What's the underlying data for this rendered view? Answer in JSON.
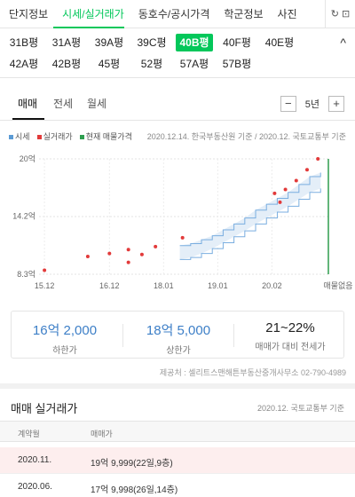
{
  "top_tabs": [
    "단지정보",
    "시세/실거래가",
    "동호수/공시가격",
    "학군정보",
    "사진"
  ],
  "top_icons": {
    "refresh": "refresh-icon",
    "refresh_text": "↻ ⊡"
  },
  "pyeong": {
    "row1": [
      "31B평",
      "31A평",
      "39A평",
      "39C평",
      "40B평",
      "40F평",
      "40E평"
    ],
    "row2": [
      "42A평",
      "42B평",
      "45평",
      "52평",
      "57A평",
      "57B평"
    ],
    "active": "40B평",
    "collapse_glyph": "^"
  },
  "trade_tabs": [
    "매매",
    "전세",
    "월세"
  ],
  "period": {
    "minus": "−",
    "value": "5년",
    "plus": "+"
  },
  "legend": [
    {
      "label": "시세",
      "color": "#5b9bd5"
    },
    {
      "label": "실거래가",
      "color": "#e23a3a"
    },
    {
      "label": "현재 매물가격",
      "color": "#2e9e4f"
    }
  ],
  "source_text": "2020.12.14. 한국부동산원 기준 / 2020.12. 국토교통부 기준",
  "chart_data": {
    "type": "line",
    "y_ticks": [
      "8.3억",
      "14.2억",
      "20억"
    ],
    "ylim": [
      8.3,
      20
    ],
    "x_ticks": [
      "15.12",
      "16.12",
      "18.01",
      "19.01",
      "20.02"
    ],
    "x_end_label": "매물없음",
    "trades": [
      {
        "t": 0.02,
        "v": 8.7
      },
      {
        "t": 0.18,
        "v": 10.1
      },
      {
        "t": 0.26,
        "v": 10.4
      },
      {
        "t": 0.33,
        "v": 9.5
      },
      {
        "t": 0.33,
        "v": 10.8
      },
      {
        "t": 0.38,
        "v": 10.3
      },
      {
        "t": 0.43,
        "v": 11.1
      },
      {
        "t": 0.53,
        "v": 12.0
      },
      {
        "t": 0.87,
        "v": 16.5
      },
      {
        "t": 0.89,
        "v": 15.6
      },
      {
        "t": 0.91,
        "v": 16.9
      },
      {
        "t": 0.95,
        "v": 17.8
      },
      {
        "t": 0.99,
        "v": 18.9
      },
      {
        "t": 1.03,
        "v": 20.0
      }
    ],
    "band_upper": [
      [
        0.52,
        11.2
      ],
      [
        0.56,
        11.4
      ],
      [
        0.6,
        11.8
      ],
      [
        0.64,
        12.2
      ],
      [
        0.68,
        12.8
      ],
      [
        0.72,
        13.4
      ],
      [
        0.76,
        14.0
      ],
      [
        0.8,
        14.8
      ],
      [
        0.84,
        15.4
      ],
      [
        0.88,
        16.0
      ],
      [
        0.92,
        16.6
      ],
      [
        0.96,
        17.4
      ],
      [
        1.0,
        18.2
      ],
      [
        1.04,
        18.6
      ]
    ],
    "band_lower": [
      [
        0.52,
        9.8
      ],
      [
        0.56,
        10.0
      ],
      [
        0.6,
        10.4
      ],
      [
        0.64,
        10.9
      ],
      [
        0.68,
        11.5
      ],
      [
        0.72,
        12.1
      ],
      [
        0.76,
        12.7
      ],
      [
        0.8,
        13.4
      ],
      [
        0.84,
        14.0
      ],
      [
        0.88,
        14.6
      ],
      [
        0.92,
        15.2
      ],
      [
        0.96,
        15.9
      ],
      [
        1.0,
        16.6
      ],
      [
        1.04,
        17.0
      ]
    ]
  },
  "summary": [
    {
      "value": "16억 2,000",
      "label": "하한가"
    },
    {
      "value": "18억 5,000",
      "label": "상한가"
    },
    {
      "value": "21~22%",
      "label": "매매가 대비 전세가"
    }
  ],
  "credit": "제공처 : 셀리트스맨해튼부동산중개사무소 02-790-4989",
  "section": {
    "title": "매매 실거래가",
    "source": "2020.12. 국토교통부 기준",
    "headers": [
      "계약월",
      "매매가"
    ],
    "rows": [
      {
        "month": "2020.11.",
        "price": "19억 9,999(22일,9층)",
        "highlight": true
      },
      {
        "month": "2020.06.",
        "price": "17억 9,998(26일,14층)",
        "highlight": false
      }
    ]
  }
}
